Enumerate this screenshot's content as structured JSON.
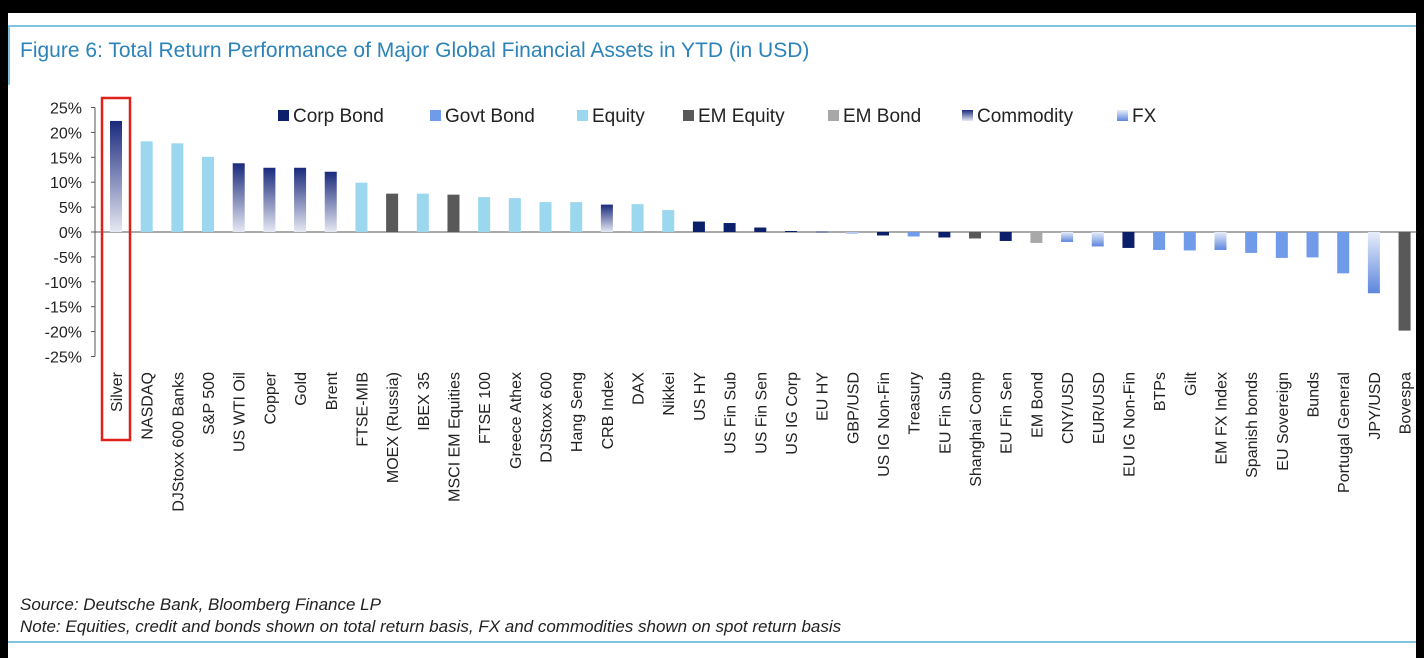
{
  "title": "Figure 6: Total Return Performance of Major Global Financial Assets in YTD (in USD)",
  "source": "Source: Deutsche Bank, Bloomberg Finance LP",
  "note": "Note: Equities, credit and bonds shown on total return basis, FX and commodities shown on spot return basis",
  "chart_data": {
    "type": "bar",
    "title": "Figure 6: Total Return Performance of Major Global Financial Assets in YTD (in USD)",
    "xlabel": "",
    "ylabel": "",
    "ylim": [
      -25,
      25
    ],
    "yticks": [
      25,
      20,
      15,
      10,
      5,
      0,
      -5,
      -10,
      -15,
      -20,
      -25
    ],
    "ytick_labels": [
      "25%",
      "20%",
      "15%",
      "10%",
      "5%",
      "0%",
      "-5%",
      "-10%",
      "-15%",
      "-20%",
      "-25%"
    ],
    "grid": false,
    "legend_position": "top",
    "highlight": "Silver",
    "legend": [
      {
        "name": "Corp Bond",
        "color": "#0b1f6b"
      },
      {
        "name": "Govt Bond",
        "color": "#6f9be8"
      },
      {
        "name": "Equity",
        "color": "#9bd7ee"
      },
      {
        "name": "EM Equity",
        "color": "#595959"
      },
      {
        "name": "EM Bond",
        "color": "#a8a8a8"
      },
      {
        "name": "Commodity",
        "color": "#1a2a7c"
      },
      {
        "name": "FX",
        "color": "#6f9be8"
      }
    ],
    "bars": [
      {
        "label": "Silver",
        "value": 22.3,
        "group": "Commodity"
      },
      {
        "label": "NASDAQ",
        "value": 18.2,
        "group": "Equity"
      },
      {
        "label": "DJStoxx 600 Banks",
        "value": 17.8,
        "group": "Equity"
      },
      {
        "label": "S&P 500",
        "value": 15.1,
        "group": "Equity"
      },
      {
        "label": "US WTI Oil",
        "value": 13.8,
        "group": "Commodity"
      },
      {
        "label": "Copper",
        "value": 12.9,
        "group": "Commodity"
      },
      {
        "label": "Gold",
        "value": 12.9,
        "group": "Commodity"
      },
      {
        "label": "Brent",
        "value": 12.1,
        "group": "Commodity"
      },
      {
        "label": "FTSE-MIB",
        "value": 9.9,
        "group": "Equity"
      },
      {
        "label": "MOEX (Russia)",
        "value": 7.7,
        "group": "EM Equity"
      },
      {
        "label": "IBEX 35",
        "value": 7.7,
        "group": "Equity"
      },
      {
        "label": "MSCI EM Equities",
        "value": 7.5,
        "group": "EM Equity"
      },
      {
        "label": "FTSE 100",
        "value": 7.0,
        "group": "Equity"
      },
      {
        "label": "Greece Athex",
        "value": 6.8,
        "group": "Equity"
      },
      {
        "label": "DJStoxx 600",
        "value": 6.0,
        "group": "Equity"
      },
      {
        "label": "Hang Seng",
        "value": 6.0,
        "group": "Equity"
      },
      {
        "label": "CRB Index",
        "value": 5.5,
        "group": "Commodity"
      },
      {
        "label": "DAX",
        "value": 5.6,
        "group": "Equity"
      },
      {
        "label": "Nikkei",
        "value": 4.4,
        "group": "Equity"
      },
      {
        "label": "US HY",
        "value": 2.1,
        "group": "Corp Bond"
      },
      {
        "label": "US Fin Sub",
        "value": 1.8,
        "group": "Corp Bond"
      },
      {
        "label": "US Fin Sen",
        "value": 0.9,
        "group": "Corp Bond"
      },
      {
        "label": "US IG Corp",
        "value": 0.2,
        "group": "Corp Bond"
      },
      {
        "label": "EU HY",
        "value": 0.1,
        "group": "Corp Bond"
      },
      {
        "label": "GBP/USD",
        "value": -0.3,
        "group": "FX"
      },
      {
        "label": "US IG Non-Fin",
        "value": -0.7,
        "group": "Corp Bond"
      },
      {
        "label": "Treasury",
        "value": -0.9,
        "group": "Govt Bond"
      },
      {
        "label": "EU Fin Sub",
        "value": -1.1,
        "group": "Corp Bond"
      },
      {
        "label": "Shanghai Comp",
        "value": -1.3,
        "group": "EM Equity"
      },
      {
        "label": "EU Fin Sen",
        "value": -1.8,
        "group": "Corp Bond"
      },
      {
        "label": "EM Bond",
        "value": -2.2,
        "group": "EM Bond"
      },
      {
        "label": "CNY/USD",
        "value": -2.0,
        "group": "FX"
      },
      {
        "label": "EUR/USD",
        "value": -2.9,
        "group": "FX"
      },
      {
        "label": "EU IG Non-Fin",
        "value": -3.2,
        "group": "Corp Bond"
      },
      {
        "label": "BTPs",
        "value": -3.6,
        "group": "Govt Bond"
      },
      {
        "label": "Gilt",
        "value": -3.7,
        "group": "Govt Bond"
      },
      {
        "label": "EM FX Index",
        "value": -3.6,
        "group": "FX"
      },
      {
        "label": "Spanish bonds",
        "value": -4.2,
        "group": "Govt Bond"
      },
      {
        "label": "EU Sovereign",
        "value": -5.2,
        "group": "Govt Bond"
      },
      {
        "label": "Bunds",
        "value": -5.1,
        "group": "Govt Bond"
      },
      {
        "label": "Portugal General",
        "value": -8.3,
        "group": "Govt Bond"
      },
      {
        "label": "JPY/USD",
        "value": -12.3,
        "group": "FX"
      },
      {
        "label": "Bovespa",
        "value": -19.8,
        "group": "EM Equity"
      }
    ]
  }
}
